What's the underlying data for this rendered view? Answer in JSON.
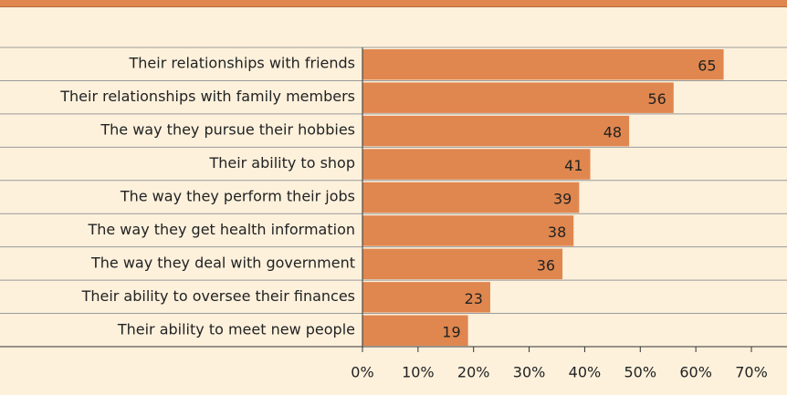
{
  "chart_data": {
    "type": "bar",
    "orientation": "horizontal",
    "categories": [
      "Their relationships with friends",
      "Their relationships with family members",
      "The way they pursue their hobbies",
      "Their ability to shop",
      "The way they perform their jobs",
      "The way they get health information",
      "The way they deal with government",
      "Their ability to oversee their finances",
      "Their ability to meet new people"
    ],
    "values": [
      65,
      56,
      48,
      41,
      39,
      38,
      36,
      23,
      19
    ],
    "color": "#e0874f",
    "xlim": [
      0,
      70
    ],
    "xticks": [
      {
        "value": 0,
        "label": "0%"
      },
      {
        "value": 10,
        "label": "10%"
      },
      {
        "value": 20,
        "label": "20%"
      },
      {
        "value": 30,
        "label": "30%"
      },
      {
        "value": 40,
        "label": "40%"
      },
      {
        "value": 50,
        "label": "50%"
      },
      {
        "value": 60,
        "label": "60%"
      },
      {
        "value": 70,
        "label": "70%"
      }
    ]
  }
}
